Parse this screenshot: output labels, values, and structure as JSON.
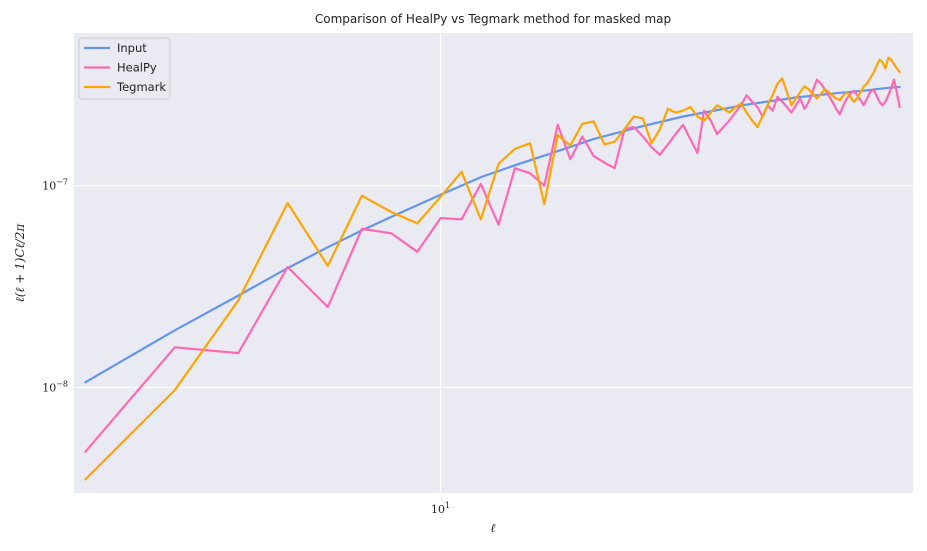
{
  "chart_data": {
    "type": "line",
    "title": "Comparison of HealPy vs Tegmark method for masked map",
    "xlabel": "ℓ",
    "ylabel": "ℓ(ℓ + 1)Cℓ/2π",
    "xscale": "log",
    "yscale": "log",
    "xlim": [
      1.9,
      85
    ],
    "ylim": [
      3e-09,
      5.7e-07
    ],
    "x_ticks": [
      {
        "value": 10,
        "base": "10",
        "exp": "1"
      }
    ],
    "y_ticks": [
      {
        "value": 1e-08,
        "base": "10",
        "exp": "−8"
      },
      {
        "value": 1e-07,
        "base": "10",
        "exp": "−7"
      }
    ],
    "grid": true,
    "legend_position": "top-left",
    "colors": {
      "background": "#EAEAF2",
      "grid": "#FFFFFF"
    },
    "series": [
      {
        "name": "Input",
        "color": "#6495ED",
        "x": [
          2,
          3,
          4,
          5,
          6,
          7,
          8,
          10,
          12,
          14,
          17,
          20,
          25,
          30,
          40,
          50,
          60,
          68,
          76,
          80
        ],
        "y": [
          1.06e-08,
          1.92e-08,
          2.85e-08,
          3.9e-08,
          4.95e-08,
          6e-08,
          7e-08,
          9e-08,
          1.1e-07,
          1.26e-07,
          1.48e-07,
          1.7e-07,
          1.97e-07,
          2.2e-07,
          2.52e-07,
          2.73e-07,
          2.87e-07,
          2.95e-07,
          3.05e-07,
          3.08e-07
        ]
      },
      {
        "name": "HealPy",
        "color": "#FF69B4",
        "x": [
          2,
          3,
          4,
          5,
          6,
          7,
          8,
          9,
          10,
          11,
          12,
          13,
          14,
          15,
          16,
          17,
          18,
          19,
          20,
          21,
          22,
          23,
          24,
          25,
          26,
          27,
          28,
          29,
          30,
          31,
          32,
          33,
          34,
          35,
          36,
          37,
          38,
          39,
          40,
          41,
          42,
          43,
          44,
          45,
          46,
          47,
          48,
          49,
          50,
          51,
          52,
          53,
          54,
          55,
          56,
          57,
          58,
          59,
          60,
          61,
          62,
          63,
          64,
          65,
          66,
          67,
          68,
          69,
          70,
          71,
          72,
          73,
          74,
          75,
          76,
          77,
          78,
          79,
          80
        ],
        "y": [
          4.8e-09,
          1.58e-08,
          1.48e-08,
          3.95e-08,
          2.5e-08,
          6.1e-08,
          5.8e-08,
          4.7e-08,
          6.9e-08,
          6.8e-08,
          1.02e-07,
          6.4e-08,
          1.22e-07,
          1.15e-07,
          1e-07,
          2e-07,
          1.35e-07,
          1.75e-07,
          1.4e-07,
          1.3e-07,
          1.22e-07,
          1.9e-07,
          1.95e-07,
          1.75e-07,
          1.55e-07,
          1.42e-07,
          1.6e-07,
          1.8e-07,
          2e-07,
          1.7e-07,
          1.45e-07,
          2.35e-07,
          2.1e-07,
          1.8e-07,
          1.95e-07,
          2.1e-07,
          2.3e-07,
          2.5e-07,
          2.8e-07,
          2.6e-07,
          2.45e-07,
          2.2e-07,
          2.5e-07,
          2.35e-07,
          2.75e-07,
          2.6e-07,
          2.45e-07,
          2.3e-07,
          2.5e-07,
          2.7e-07,
          2.4e-07,
          2.6e-07,
          2.95e-07,
          3.35e-07,
          3.2e-07,
          3e-07,
          2.8e-07,
          2.6e-07,
          2.4e-07,
          2.25e-07,
          2.5e-07,
          2.7e-07,
          2.85e-07,
          2.95e-07,
          2.8e-07,
          2.65e-07,
          2.5e-07,
          2.7e-07,
          2.9e-07,
          3e-07,
          2.8e-07,
          2.6e-07,
          2.5e-07,
          2.6e-07,
          2.8e-07,
          3.05e-07,
          3.35e-07,
          2.9e-07,
          2.45e-07
        ]
      },
      {
        "name": "Tegmark",
        "color": "#FFA500",
        "x": [
          2,
          3,
          4,
          5,
          6,
          7,
          8,
          9,
          10,
          11,
          12,
          13,
          14,
          15,
          16,
          17,
          18,
          19,
          20,
          21,
          22,
          23,
          24,
          25,
          26,
          27,
          28,
          29,
          30,
          31,
          32,
          33,
          34,
          35,
          36,
          37,
          38,
          39,
          40,
          41,
          42,
          43,
          44,
          45,
          46,
          47,
          48,
          49,
          50,
          51,
          52,
          53,
          54,
          55,
          56,
          57,
          58,
          59,
          60,
          61,
          62,
          63,
          64,
          65,
          66,
          67,
          68,
          69,
          70,
          71,
          72,
          73,
          74,
          75,
          76,
          77,
          78,
          79,
          80
        ],
        "y": [
          3.5e-09,
          9.7e-09,
          2.7e-08,
          8.2e-08,
          4e-08,
          8.9e-08,
          7.4e-08,
          6.5e-08,
          8.8e-08,
          1.17e-07,
          6.8e-08,
          1.28e-07,
          1.52e-07,
          1.62e-07,
          8.1e-08,
          1.78e-07,
          1.58e-07,
          2.02e-07,
          2.08e-07,
          1.6e-07,
          1.65e-07,
          1.9e-07,
          2.2e-07,
          2.15e-07,
          1.62e-07,
          1.9e-07,
          2.4e-07,
          2.3e-07,
          2.35e-07,
          2.45e-07,
          2.2e-07,
          2.1e-07,
          2.3e-07,
          2.5e-07,
          2.4e-07,
          2.3e-07,
          2.45e-07,
          2.55e-07,
          2.3e-07,
          2.1e-07,
          1.95e-07,
          2.2e-07,
          2.5e-07,
          2.8e-07,
          3.2e-07,
          3.4e-07,
          2.9e-07,
          2.5e-07,
          2.7e-07,
          2.9e-07,
          3.1e-07,
          3e-07,
          2.85e-07,
          2.7e-07,
          2.85e-07,
          3e-07,
          2.9e-07,
          2.8e-07,
          2.7e-07,
          2.65e-07,
          2.8e-07,
          2.9e-07,
          2.75e-07,
          2.6e-07,
          2.7e-07,
          2.9e-07,
          3.1e-07,
          3.2e-07,
          3.4e-07,
          3.6e-07,
          3.9e-07,
          4.2e-07,
          4.1e-07,
          3.8e-07,
          4.3e-07,
          4.2e-07,
          4e-07,
          3.8e-07,
          3.65e-07
        ]
      }
    ]
  }
}
